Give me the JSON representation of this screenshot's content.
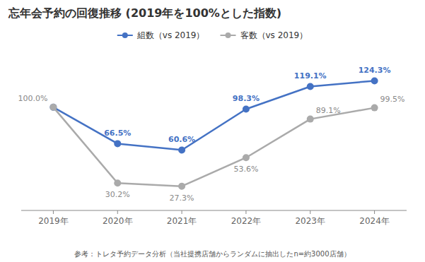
{
  "chart_data": {
    "type": "line",
    "title": "忘年会予約の回復推移 (2019年を100%とした指数)",
    "footnote": "参考：トレタ予約データ分析（当社提携店舗からランダムに抽出したn=約3000店舗）",
    "categories": [
      "2019年",
      "2020年",
      "2021年",
      "2022年",
      "2023年",
      "2024年"
    ],
    "series": [
      {
        "name": "組数（vs 2019）",
        "color": "#4472C4",
        "marker": "circle",
        "line_style": "solid",
        "values": [
          100.0,
          66.5,
          60.6,
          98.3,
          119.1,
          124.3
        ],
        "data_labels": true,
        "value_labels": [
          null,
          "66.5%",
          "60.6%",
          "98.3%",
          "119.1%",
          "124.3%"
        ]
      },
      {
        "name": "客数（vs 2019）",
        "color": "#AAAAAA",
        "marker": "circle",
        "line_style": "solid",
        "values": [
          100.0,
          30.2,
          27.3,
          53.6,
          89.1,
          99.5
        ],
        "data_labels": true,
        "value_labels": [
          "100.0%",
          "30.2%",
          "27.3%",
          "53.6%",
          "89.1%",
          "99.5%"
        ]
      }
    ],
    "ylim": [
      5,
      148
    ],
    "tick_labels": "x",
    "grid": false,
    "legend": "top"
  }
}
